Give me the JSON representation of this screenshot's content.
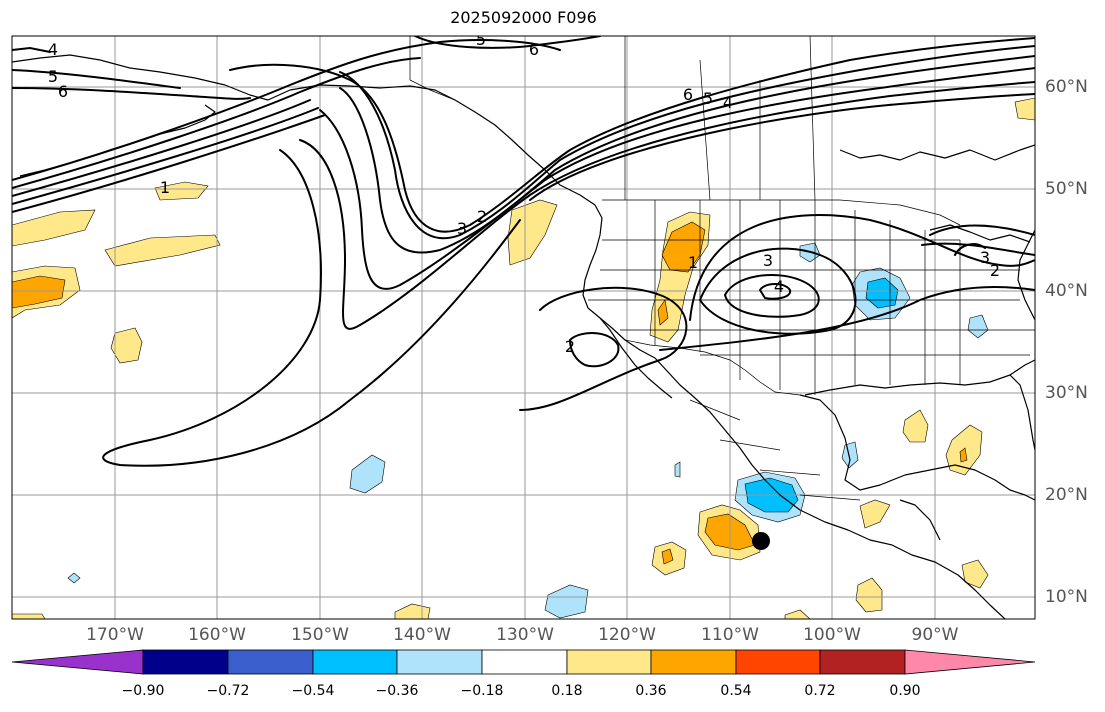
{
  "title": "2025092000 F096",
  "colors": {
    "coast": "#000000",
    "contour": "#000000",
    "grid": "#9a9a9a",
    "yellow": "#ffe88a",
    "orange": "#ffa500",
    "lightblue": "#aee3fb",
    "cyan": "#00bfff"
  },
  "axes": {
    "lon_labels": [
      "170°W",
      "160°W",
      "150°W",
      "140°W",
      "130°W",
      "120°W",
      "110°W",
      "100°W",
      "90°W"
    ],
    "lat_labels": [
      "60°N",
      "50°N",
      "40°N",
      "30°N",
      "20°N",
      "10°N"
    ]
  },
  "contour_labels": {
    "c1": "4",
    "c2": "5",
    "c3": "6",
    "c4": "5",
    "c5": "6",
    "c6": "6",
    "c7": "5",
    "c8": "4",
    "c9": "1",
    "c10": "3",
    "c11": "2",
    "c12": "1",
    "c13": "3",
    "c14": "4",
    "c15": "2",
    "c16": "3",
    "c17": "2"
  },
  "colorbar": {
    "colors": [
      "#9932cc",
      "#00008b",
      "#3a5fcd",
      "#00bfff",
      "#aee3fb",
      "#ffffff",
      "#ffe88a",
      "#ffa500",
      "#ff4500",
      "#b22222",
      "#ff88aa"
    ],
    "tick_labels": [
      "−0.90",
      "−0.72",
      "−0.54",
      "−0.36",
      "−0.18",
      "0.18",
      "0.36",
      "0.54",
      "0.72",
      "0.90"
    ]
  }
}
